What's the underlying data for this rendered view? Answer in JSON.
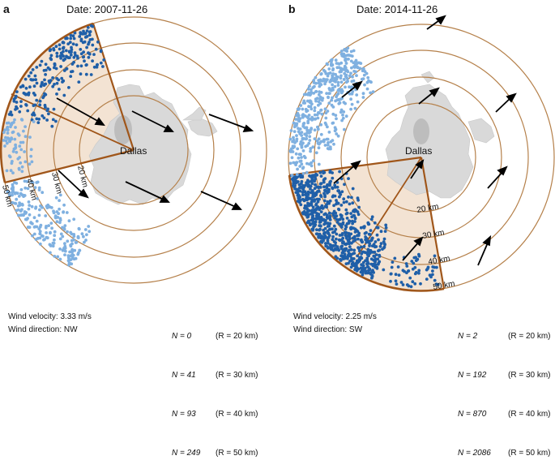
{
  "panels": [
    {
      "label": "a",
      "title": "Date: 2007-11-26",
      "city": "Dallas",
      "wind_velocity": "Wind velocity: 3.33 m/s",
      "wind_direction": "Wind direction: NW",
      "ring_labels": [
        "20 km",
        "30 km",
        "40 km",
        "50 km"
      ],
      "counts": [
        {
          "n": "N = 0",
          "r": "(R = 20 km)"
        },
        {
          "n": "N = 41",
          "r": "(R = 30 km)"
        },
        {
          "n": "N = 93",
          "r": "(R = 40 km)"
        },
        {
          "n": "N = 249",
          "r": "(R = 50 km)"
        }
      ]
    },
    {
      "label": "b",
      "title": "Date: 2014-11-26",
      "city": "Dallas",
      "wind_velocity": "Wind velocity: 2.25 m/s",
      "wind_direction": "Wind direction: SW",
      "ring_labels": [
        "20 km",
        "30 km",
        "40 km",
        "50 km"
      ],
      "counts": [
        {
          "n": "N = 2",
          "r": "(R = 20 km)"
        },
        {
          "n": "N = 192",
          "r": "(R = 30 km)"
        },
        {
          "n": "N = 870",
          "r": "(R = 40 km)"
        },
        {
          "n": "N = 2086",
          "r": "(R = 50 km)"
        }
      ]
    }
  ],
  "colors": {
    "ring": "#b5804a",
    "sector_fill": "#f3e3d3",
    "sector_edge": "#a0561a",
    "urban": "#d9d9d9",
    "dot_dark": "#1f5fa8",
    "dot_light": "#7fb0e0",
    "arrow": "#000000"
  }
}
